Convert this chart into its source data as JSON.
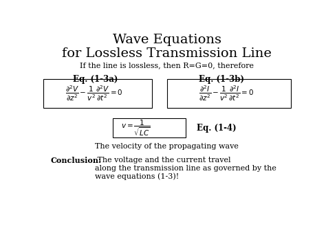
{
  "title_line1": "Wave Equations",
  "title_line2": "for Lossless Transmission Line",
  "subtitle": "If the line is lossless, then R=G=0, therefore",
  "eq_label_1": "Eq. (1-3a)",
  "eq_label_2": "Eq. (1-3b)",
  "eq_label_3": "Eq. (1-4)",
  "eq1_latex": "$\\dfrac{\\partial^2 V}{\\partial z^2} - \\dfrac{1}{v^2}\\dfrac{\\partial^2 V}{\\partial t^2} = 0$",
  "eq2_latex": "$\\dfrac{\\partial^2 I}{\\partial z^2} - \\dfrac{1}{v^2}\\dfrac{\\partial^2 I}{\\partial t^2} = 0$",
  "eq3_latex": "$v = \\dfrac{1}{\\sqrt{LC}}$",
  "vel_text": "The velocity of the propagating wave",
  "conclusion_bold": "Conclusion:",
  "conclusion_rest": " The voltage and the current travel\nalong the transmission line as governed by the\nwave equations (1-3)!",
  "bg_color": "#ffffff",
  "text_color": "#000000",
  "title_fontsize": 14,
  "eq_label_fontsize": 8.5,
  "eq_fontsize": 7.5,
  "body_fontsize": 8,
  "subtitle_fontsize": 8
}
